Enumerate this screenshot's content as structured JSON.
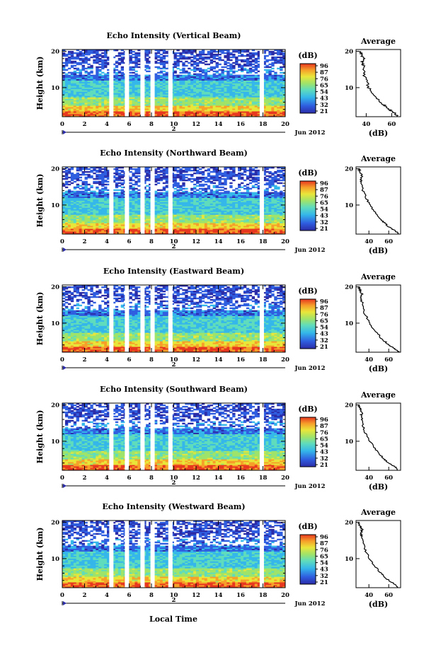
{
  "chart_data": [
    {
      "type": "heatmap",
      "title": "Echo Intensity (Vertical Beam)",
      "ylabel": "Height (km)",
      "xticks": [
        0,
        2,
        4,
        6,
        8,
        10,
        12,
        14,
        16,
        18,
        20
      ],
      "yticks": [
        10,
        20
      ],
      "xlim": [
        0,
        20
      ],
      "ylim": [
        2,
        20.5
      ],
      "date_label": "2",
      "month_label": "Jun 2012",
      "colorbar_label": "(dB)",
      "colorbar_ticks": [
        "96",
        "87",
        "76",
        "65",
        "54",
        "43",
        "32",
        "21"
      ],
      "gap_hours": [
        4.4,
        5.8,
        7.2,
        8.1,
        9.7,
        17.9
      ],
      "average": {
        "title": "Average",
        "xlabel": "(dB)",
        "xticks": [
          40,
          60
        ],
        "xlim": [
          32,
          67
        ],
        "height": [
          2,
          3,
          4,
          5,
          6,
          8,
          10,
          12,
          14,
          16,
          17,
          18,
          19,
          20
        ],
        "db": [
          65,
          62,
          58,
          55,
          51,
          46,
          42,
          40,
          38,
          38,
          37,
          38,
          36,
          36
        ]
      }
    },
    {
      "type": "heatmap",
      "title": "Echo Intensity (Northward Beam)",
      "ylabel": "Height (km)",
      "xticks": [
        0,
        2,
        4,
        6,
        8,
        10,
        12,
        14,
        16,
        18,
        20
      ],
      "yticks": [
        10,
        20
      ],
      "xlim": [
        0,
        20
      ],
      "ylim": [
        2,
        20.5
      ],
      "date_label": "2",
      "month_label": "Jun 2012",
      "colorbar_label": "(dB)",
      "colorbar_ticks": [
        "96",
        "87",
        "76",
        "65",
        "54",
        "43",
        "32",
        "21"
      ],
      "gap_hours": [
        4.4,
        5.8,
        7.2,
        8.1,
        9.7,
        17.9
      ],
      "average": {
        "title": "Average",
        "xlabel": "(dB)",
        "xticks": [
          40,
          60
        ],
        "xlim": [
          27,
          72
        ],
        "height": [
          2,
          3,
          4,
          5,
          6,
          8,
          10,
          12,
          14,
          16,
          17,
          18,
          19,
          20
        ],
        "db": [
          70,
          66,
          60,
          56,
          52,
          46,
          41,
          37,
          34,
          33,
          32,
          33,
          31,
          30
        ]
      }
    },
    {
      "type": "heatmap",
      "title": "Echo Intensity (Eastward Beam)",
      "ylabel": "Height (km)",
      "xticks": [
        0,
        2,
        4,
        6,
        8,
        10,
        12,
        14,
        16,
        18,
        20
      ],
      "yticks": [
        10,
        20
      ],
      "xlim": [
        0,
        20
      ],
      "ylim": [
        2,
        20.5
      ],
      "date_label": "2",
      "month_label": "Jun 2012",
      "colorbar_label": "(dB)",
      "colorbar_ticks": [
        "96",
        "87",
        "76",
        "65",
        "54",
        "43",
        "32",
        "21"
      ],
      "gap_hours": [
        4.4,
        5.8,
        7.2,
        8.1,
        9.7,
        17.9
      ],
      "average": {
        "title": "Average",
        "xlabel": "(dB)",
        "xticks": [
          40,
          60
        ],
        "xlim": [
          27,
          72
        ],
        "height": [
          2,
          3,
          4,
          5,
          6,
          8,
          10,
          12,
          14,
          16,
          17,
          18,
          19,
          20
        ],
        "db": [
          70,
          66,
          60,
          56,
          52,
          46,
          41,
          37,
          34,
          33,
          32,
          33,
          31,
          30
        ]
      }
    },
    {
      "type": "heatmap",
      "title": "Echo Intensity (Southward Beam)",
      "ylabel": "Height (km)",
      "xticks": [
        0,
        2,
        4,
        6,
        8,
        10,
        12,
        14,
        16,
        18,
        20
      ],
      "yticks": [
        10,
        20
      ],
      "xlim": [
        0,
        20
      ],
      "ylim": [
        2,
        20.5
      ],
      "date_label": "2",
      "month_label": "Jun 2012",
      "colorbar_label": "(dB)",
      "colorbar_ticks": [
        "96",
        "87",
        "76",
        "65",
        "54",
        "43",
        "32",
        "21"
      ],
      "gap_hours": [
        4.4,
        5.8,
        7.2,
        8.1,
        9.7,
        17.9
      ],
      "average": {
        "title": "Average",
        "xlabel": "(dB)",
        "xticks": [
          40,
          60
        ],
        "xlim": [
          27,
          72
        ],
        "height": [
          2,
          3,
          4,
          5,
          6,
          8,
          10,
          12,
          14,
          16,
          17,
          18,
          19,
          20
        ],
        "db": [
          70,
          66,
          60,
          56,
          52,
          46,
          41,
          37,
          34,
          33,
          32,
          33,
          31,
          30
        ]
      }
    },
    {
      "type": "heatmap",
      "title": "Echo Intensity (Westward Beam)",
      "ylabel": "Height (km)",
      "xlabel": "Local Time",
      "xticks": [
        0,
        2,
        4,
        6,
        8,
        10,
        12,
        14,
        16,
        18,
        20
      ],
      "yticks": [
        10,
        20
      ],
      "xlim": [
        0,
        20
      ],
      "ylim": [
        2,
        20.5
      ],
      "date_label": "2",
      "month_label": "Jun 2012",
      "colorbar_label": "(dB)",
      "colorbar_ticks": [
        "96",
        "87",
        "76",
        "65",
        "54",
        "43",
        "32",
        "21"
      ],
      "gap_hours": [
        4.4,
        5.8,
        7.2,
        8.1,
        9.7,
        17.9
      ],
      "average": {
        "title": "Average",
        "xlabel": "(dB)",
        "xticks": [
          40,
          60
        ],
        "xlim": [
          27,
          72
        ],
        "height": [
          2,
          3,
          4,
          5,
          6,
          8,
          10,
          12,
          14,
          16,
          17,
          18,
          19,
          20
        ],
        "db": [
          70,
          66,
          60,
          56,
          52,
          46,
          41,
          37,
          34,
          33,
          32,
          33,
          31,
          30
        ]
      }
    }
  ],
  "colors": {
    "colormap": [
      "#2b2ca8",
      "#2f5fe0",
      "#35b7ea",
      "#5fdcbc",
      "#9ee36a",
      "#e9e63a",
      "#f6a02a",
      "#e7381f"
    ]
  }
}
